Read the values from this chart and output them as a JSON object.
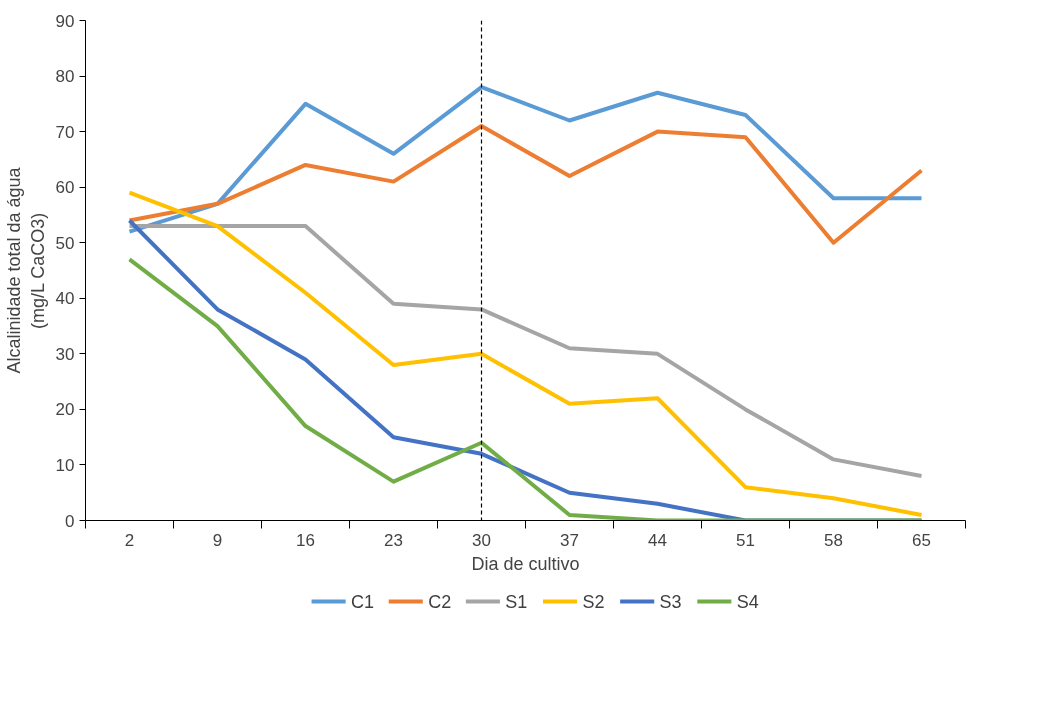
{
  "chart_data": {
    "type": "line",
    "xlabel": "Dia de cultivo",
    "ylabel": "Alcalinidade total da água\n(mg/L CaCO3)",
    "categories": [
      "2",
      "9",
      "16",
      "23",
      "30",
      "37",
      "44",
      "51",
      "58",
      "65"
    ],
    "ylim": [
      0,
      90
    ],
    "yticks": [
      0,
      10,
      20,
      30,
      40,
      50,
      60,
      70,
      80,
      90
    ],
    "grid": false,
    "legend": "bottom",
    "marker": "none",
    "line_style": "solid",
    "ref_lines": [
      {
        "axis": "x",
        "value": "30",
        "color": "#000000",
        "line_style": "dashed"
      }
    ],
    "series": [
      {
        "name": "C1",
        "color": "#5b9bd5",
        "values": [
          52,
          57,
          75,
          66,
          78,
          72,
          77,
          73,
          58,
          58
        ]
      },
      {
        "name": "C2",
        "color": "#ed7d31",
        "values": [
          54,
          57,
          64,
          61,
          71,
          62,
          70,
          69,
          50,
          63
        ]
      },
      {
        "name": "S1",
        "color": "#a5a5a5",
        "values": [
          53,
          53,
          53,
          39,
          38,
          31,
          30,
          20,
          11,
          8
        ]
      },
      {
        "name": "S2",
        "color": "#ffc000",
        "values": [
          59,
          53,
          41,
          28,
          30,
          21,
          22,
          6,
          4,
          1
        ]
      },
      {
        "name": "S3",
        "color": "#4472c4",
        "values": [
          54,
          38,
          29,
          15,
          12,
          5,
          3,
          0,
          0,
          0
        ]
      },
      {
        "name": "S4",
        "color": "#70ad47",
        "values": [
          47,
          35,
          17,
          7,
          14,
          1,
          0,
          0,
          0,
          0
        ]
      }
    ]
  }
}
